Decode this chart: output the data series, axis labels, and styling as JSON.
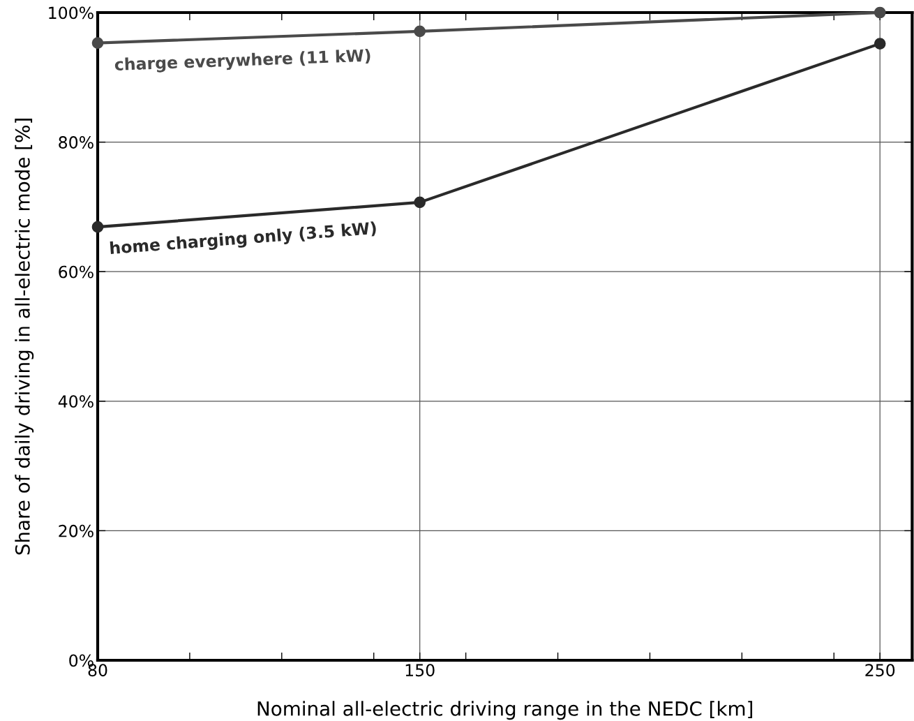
{
  "chart_data": {
    "type": "line",
    "xlabel": "Nominal all-electric driving range in the NEDC [km]",
    "ylabel": "Share of daily driving in all-electric mode [%]",
    "x": [
      80,
      150,
      250
    ],
    "series": [
      {
        "name": "charge everywhere (11 kW)",
        "color": "#4a4a4a",
        "values": [
          95.3,
          97.1,
          100
        ]
      },
      {
        "name": "home charging only (3.5 kW)",
        "color": "#2a2a2a",
        "values": [
          66.9,
          70.7,
          95.2
        ]
      }
    ],
    "xlim": [
      80,
      257
    ],
    "ylim": [
      0,
      100
    ],
    "xticks": [
      80,
      {
        "value": 100,
        "label": null
      },
      {
        "value": 120,
        "label": null
      },
      {
        "value": 140,
        "label": null
      },
      150,
      {
        "value": 160,
        "label": null
      },
      {
        "value": 180,
        "label": null
      },
      {
        "value": 200,
        "label": null
      },
      {
        "value": 220,
        "label": null
      },
      {
        "value": 240,
        "label": null
      },
      250
    ],
    "yticks": [
      {
        "value": 0,
        "label": "0%"
      },
      {
        "value": 20,
        "label": "20%"
      },
      {
        "value": 40,
        "label": "40%"
      },
      {
        "value": 60,
        "label": "60%"
      },
      {
        "value": 80,
        "label": "80%"
      },
      {
        "value": 100,
        "label": "100%"
      }
    ],
    "grid": true,
    "marker": "circle",
    "line_style": "solid",
    "legend": false
  }
}
